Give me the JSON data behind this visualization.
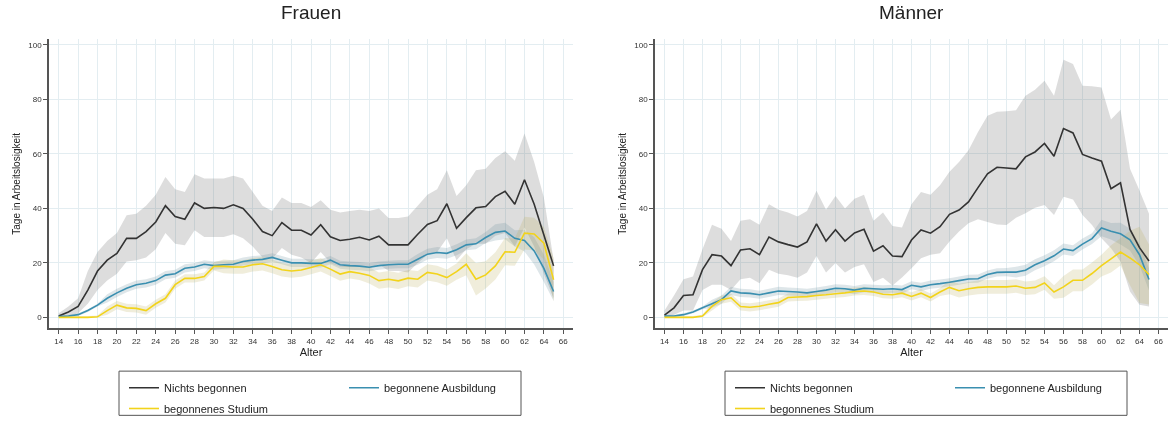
{
  "chart_data": [
    {
      "type": "line",
      "title": "Frauen",
      "xlabel": "Alter",
      "ylabel": "Tage in Arbeitslosigkeit",
      "x": [
        14,
        15,
        16,
        17,
        18,
        19,
        20,
        21,
        22,
        23,
        24,
        25,
        26,
        27,
        28,
        29,
        30,
        31,
        32,
        33,
        34,
        35,
        36,
        37,
        38,
        39,
        40,
        41,
        42,
        43,
        44,
        45,
        46,
        47,
        48,
        49,
        50,
        51,
        52,
        53,
        54,
        55,
        56,
        57,
        58,
        59,
        60,
        61,
        62,
        63,
        64,
        65
      ],
      "xlim": [
        13,
        67
      ],
      "xticks": [
        14,
        16,
        18,
        20,
        22,
        24,
        26,
        28,
        30,
        32,
        34,
        36,
        38,
        40,
        42,
        44,
        46,
        48,
        50,
        52,
        54,
        56,
        58,
        60,
        62,
        64,
        66
      ],
      "ylim": [
        -4,
        102
      ],
      "yticks": [
        0,
        20,
        40,
        60,
        80,
        100
      ],
      "grid": true,
      "legend": "bottom",
      "marker": "none",
      "line_style": "solid",
      "series": [
        {
          "name": "Nichts begonnen",
          "color": "#333333",
          "values": [
            0.5,
            2,
            4,
            10,
            17,
            21,
            23.5,
            29,
            29,
            31.5,
            35,
            41,
            37,
            36,
            42,
            40,
            40.3,
            40,
            41.3,
            40,
            36,
            31.5,
            30,
            34.8,
            32,
            32,
            30.2,
            34,
            29.6,
            28.2,
            28.7,
            29.4,
            28.4,
            29.8,
            26.6,
            26.6,
            26.6,
            30.5,
            34.1,
            35.5,
            41.7,
            32.7,
            36.6,
            40.2,
            40.7,
            44.3,
            46.3,
            41.5,
            50.5,
            41.5,
            30.2,
            18.9
          ],
          "upper": [
            1.5,
            4,
            7,
            17,
            24,
            28,
            31,
            37.5,
            38,
            41,
            45,
            51.5,
            47,
            46,
            52.5,
            51,
            51,
            51,
            52,
            51,
            46,
            41,
            39,
            44,
            42,
            42,
            40.5,
            43,
            39.5,
            38.5,
            39,
            39.5,
            39,
            40,
            36.5,
            36.5,
            37,
            41,
            45,
            47,
            54,
            44.5,
            48.5,
            54,
            54.5,
            58.5,
            61,
            57.5,
            67.5,
            57,
            44,
            21
          ],
          "lower": [
            0,
            0.5,
            1.5,
            5,
            10,
            13.5,
            16,
            20.5,
            21,
            22,
            25,
            31,
            27,
            26.5,
            32,
            29.5,
            29.5,
            29.5,
            30.5,
            29,
            26,
            22,
            21.5,
            25.5,
            23,
            22,
            20,
            24,
            20,
            18.5,
            18.5,
            19,
            18,
            19.5,
            17,
            17,
            16.5,
            20,
            23,
            24,
            29,
            21,
            25,
            27,
            27,
            30,
            31,
            26,
            33,
            26,
            16,
            7
          ]
        },
        {
          "name": "begonnene Ausbildung",
          "color": "#3a8fb0",
          "values": [
            0.3,
            0.5,
            1,
            2.5,
            4.5,
            7,
            9,
            10.7,
            12,
            12.5,
            13.5,
            15.5,
            16,
            18,
            18.5,
            19.5,
            19,
            19.3,
            19.5,
            20.5,
            21,
            21.3,
            22,
            21,
            20,
            20,
            19.8,
            19.8,
            21,
            19.3,
            19,
            18.8,
            18.4,
            19,
            19.3,
            19.5,
            19.5,
            21.3,
            23.2,
            23.8,
            23.5,
            24.8,
            26.6,
            27,
            29.3,
            31.2,
            31.7,
            29,
            28.2,
            24.4,
            18,
            9.5
          ],
          "upper": [
            0.8,
            1,
            1.5,
            3,
            5,
            8.5,
            10.5,
            12.2,
            13.5,
            14,
            15,
            17,
            17.5,
            19.5,
            20,
            21,
            20.5,
            20.8,
            21,
            22,
            22.5,
            22.8,
            23.5,
            22.5,
            21.5,
            21.5,
            21.3,
            21.3,
            22.5,
            20.8,
            20.5,
            20.3,
            19.9,
            20.5,
            20.8,
            21,
            21,
            23.3,
            25.2,
            25.8,
            25.5,
            26.8,
            28.6,
            29,
            31.3,
            34.2,
            34.7,
            32,
            32.2,
            29.4,
            23,
            13
          ],
          "lower": [
            0,
            0,
            0.5,
            2,
            4,
            5.5,
            7.5,
            9.2,
            10.5,
            11,
            12,
            14,
            14.5,
            16.5,
            17,
            18,
            17.5,
            17.8,
            18,
            19,
            19.5,
            19.8,
            20.5,
            19.5,
            18.5,
            18.5,
            18.3,
            18.3,
            19.5,
            17.8,
            17.5,
            17.3,
            16.9,
            17.5,
            17.8,
            18,
            18,
            19.3,
            21.2,
            21.8,
            21.5,
            22.8,
            24.6,
            25,
            27.3,
            28.2,
            28.7,
            26,
            24.2,
            19.4,
            13,
            6
          ]
        },
        {
          "name": "begonnenes Studium",
          "color": "#f2d31b",
          "values": [
            0,
            0,
            0,
            0,
            0.2,
            2.5,
            4.5,
            3.5,
            3.3,
            2.5,
            5,
            7,
            12,
            14.3,
            14.3,
            15,
            18.7,
            18.7,
            18.5,
            18.5,
            19.3,
            19.7,
            18.7,
            17.5,
            17,
            17.4,
            18.3,
            19.3,
            17.7,
            15.9,
            16.8,
            16.2,
            15.4,
            13.5,
            14,
            13.4,
            14.4,
            14,
            16.5,
            15.9,
            14.6,
            16.8,
            19.5,
            14,
            15.6,
            18.9,
            24.1,
            23.9,
            30.9,
            30.6,
            27.2,
            13.8
          ],
          "upper": [
            0.5,
            0.5,
            0.5,
            0.5,
            0.7,
            4,
            6,
            5,
            4.8,
            4,
            6.5,
            8.5,
            13.5,
            15.8,
            15.8,
            16.5,
            20.2,
            21.2,
            21,
            21,
            21.8,
            22.2,
            21.2,
            20,
            19.5,
            19.9,
            20.8,
            21.8,
            20.2,
            18.4,
            19.3,
            18.7,
            18.4,
            16.5,
            17,
            16.4,
            17.4,
            17,
            19.5,
            18.9,
            17.6,
            19.8,
            23.5,
            20,
            20.6,
            23.9,
            29.1,
            28.9,
            36.9,
            36.6,
            33.2,
            21.8
          ],
          "lower": [
            0,
            0,
            0,
            0,
            0,
            1,
            3,
            2,
            1.8,
            1,
            3.5,
            5.5,
            10.5,
            12.8,
            12.8,
            13.5,
            17.2,
            16.2,
            16,
            16,
            16.8,
            17.2,
            16.2,
            15,
            14.5,
            14.9,
            15.8,
            16.8,
            15.2,
            13.4,
            14.3,
            13.7,
            12.4,
            10.5,
            11,
            10.4,
            11.4,
            11,
            13.5,
            12.9,
            11.6,
            13.8,
            15.5,
            8,
            10.6,
            13.9,
            19.1,
            18.9,
            24.9,
            24.6,
            21.2,
            5.8
          ]
        }
      ]
    },
    {
      "type": "line",
      "title": "Männer",
      "xlabel": "Alter",
      "ylabel": "Tage in Arbeitslosigkeit",
      "x": [
        14,
        15,
        16,
        17,
        18,
        19,
        20,
        21,
        22,
        23,
        24,
        25,
        26,
        27,
        28,
        29,
        30,
        31,
        32,
        33,
        34,
        35,
        36,
        37,
        38,
        39,
        40,
        41,
        42,
        43,
        44,
        45,
        46,
        47,
        48,
        49,
        50,
        51,
        52,
        53,
        54,
        55,
        56,
        57,
        58,
        59,
        60,
        61,
        62,
        63,
        64,
        65
      ],
      "xlim": [
        13,
        67
      ],
      "xticks": [
        14,
        16,
        18,
        20,
        22,
        24,
        26,
        28,
        30,
        32,
        34,
        36,
        38,
        40,
        42,
        44,
        46,
        48,
        50,
        52,
        54,
        56,
        58,
        60,
        62,
        64,
        66
      ],
      "ylim": [
        -4,
        102
      ],
      "yticks": [
        0,
        20,
        40,
        60,
        80,
        100
      ],
      "grid": true,
      "legend": "bottom",
      "marker": "none",
      "line_style": "solid",
      "series": [
        {
          "name": "Nichts begonnen",
          "color": "#333333",
          "values": [
            0.8,
            3.5,
            8,
            8.3,
            17.5,
            23,
            22.5,
            19,
            24.7,
            25.2,
            23,
            29.5,
            27.7,
            26.7,
            25.8,
            27.7,
            34.3,
            28,
            32.2,
            28,
            31,
            32.3,
            24.3,
            26.3,
            22.5,
            22.3,
            28.4,
            32.1,
            30.9,
            33.3,
            37.8,
            39.4,
            42.4,
            47.6,
            52.7,
            55.1,
            54.8,
            54.5,
            58.9,
            60.7,
            63.8,
            59.1,
            69.3,
            67.7,
            59.8,
            58.5,
            57.3,
            47.2,
            49.4,
            32.3,
            25.6,
            20.7
          ],
          "upper": [
            2.5,
            8,
            14,
            15,
            25,
            34,
            32.5,
            28,
            35.5,
            36,
            34,
            41.5,
            39.5,
            38.5,
            37,
            39,
            46.5,
            39.5,
            44.5,
            40,
            43.5,
            45,
            35.5,
            38.5,
            33.5,
            33,
            41.5,
            46,
            45,
            48.5,
            53.4,
            57,
            61.3,
            68,
            74,
            75.5,
            75.6,
            76,
            81.3,
            83.5,
            86.8,
            81.3,
            94.5,
            93,
            85,
            84.8,
            84.4,
            72.6,
            76.2,
            54.5,
            46.6,
            38
          ],
          "lower": [
            0,
            1,
            2.5,
            2.5,
            10,
            12,
            12,
            10,
            14,
            14.5,
            12.5,
            17.5,
            16,
            15.5,
            14.5,
            16.5,
            22.5,
            16.5,
            20,
            16.5,
            18.5,
            19.5,
            13,
            14.5,
            11.7,
            14.6,
            18,
            21.7,
            23,
            23.5,
            27.8,
            31.5,
            34.5,
            36,
            35,
            34.1,
            33.9,
            36.6,
            38.2,
            40.2,
            41.2,
            37.6,
            44.3,
            43.3,
            37.6,
            33.9,
            29,
            25.4,
            20.5,
            9.5,
            4.6,
            4
          ]
        },
        {
          "name": "begonnene Ausbildung",
          "color": "#3a8fb0",
          "values": [
            0.5,
            0.5,
            1,
            2,
            3.5,
            5,
            6.5,
            9.7,
            9,
            8.8,
            8.3,
            9,
            9.7,
            9.5,
            9.3,
            9,
            9.5,
            10,
            10.7,
            10.5,
            10,
            10.7,
            10.5,
            10.3,
            10.5,
            10.2,
            11.8,
            11.2,
            12,
            12.4,
            12.9,
            13.5,
            14.1,
            14.2,
            15.7,
            16.5,
            16.6,
            16.6,
            17.3,
            19.3,
            20.8,
            22.6,
            25.1,
            24.5,
            26.9,
            28.9,
            32.8,
            31.6,
            30.7,
            28.5,
            23,
            13.9
          ],
          "upper": [
            1,
            1,
            1.5,
            2.5,
            4,
            6.5,
            8,
            11.2,
            10.5,
            10.3,
            9.8,
            10.5,
            11.2,
            11,
            10.8,
            10.5,
            11,
            11.5,
            12.2,
            12,
            11.5,
            12.2,
            12,
            11.8,
            12,
            11.7,
            13.3,
            12.7,
            13.5,
            13.9,
            14.4,
            15,
            15.6,
            15.7,
            17.2,
            18,
            18.1,
            18.6,
            19.3,
            21.3,
            22.8,
            24.6,
            27.1,
            26.5,
            28.9,
            30.9,
            35.8,
            34.6,
            34.7,
            32.5,
            27,
            17.9
          ],
          "lower": [
            0,
            0,
            0.5,
            1.5,
            3,
            3.5,
            5,
            8.2,
            7.5,
            7.3,
            6.8,
            7.5,
            8.2,
            8,
            7.8,
            7.5,
            8,
            8.5,
            9.2,
            9,
            8.5,
            9.2,
            9,
            8.8,
            9,
            8.7,
            10.3,
            9.7,
            10.5,
            10.9,
            11.4,
            12,
            12.6,
            12.7,
            14.2,
            15,
            15.1,
            14.6,
            15.3,
            17.3,
            18.8,
            20.6,
            23.1,
            22.5,
            24.9,
            26.9,
            29.8,
            28.6,
            26.7,
            24.5,
            19,
            9.9
          ]
        },
        {
          "name": "begonnenes Studium",
          "color": "#f2d31b",
          "values": [
            0,
            0,
            0,
            0,
            0.5,
            4,
            6.5,
            7.2,
            4,
            3.7,
            4.1,
            4.8,
            5.4,
            7.3,
            7.5,
            7.6,
            8,
            8.3,
            8.7,
            9,
            9.5,
            9.7,
            9.3,
            8.5,
            8.3,
            8.9,
            7.7,
            8.9,
            7.3,
            9.3,
            11,
            9.8,
            10.5,
            11,
            11.2,
            11.2,
            11.2,
            11.5,
            10.7,
            11,
            12.6,
            9.3,
            11.2,
            13.6,
            13.6,
            16.1,
            19,
            21.5,
            24,
            21.8,
            19.3,
            15.7
          ],
          "upper": [
            0.5,
            0.5,
            0.5,
            0.5,
            1,
            5.5,
            8,
            8.7,
            5.5,
            5.2,
            5.6,
            6.3,
            6.9,
            8.8,
            9,
            9.1,
            9.5,
            9.8,
            10.2,
            10.5,
            11,
            11.2,
            10.8,
            10,
            9.8,
            10.4,
            9.2,
            10.4,
            8.8,
            10.8,
            13.5,
            12.3,
            13,
            13.5,
            13.7,
            13.7,
            13.7,
            14,
            13.2,
            13.5,
            15.1,
            11.8,
            15.2,
            17.6,
            17.6,
            20.1,
            23,
            26.5,
            29,
            31.8,
            33.3,
            26.7
          ],
          "lower": [
            0,
            0,
            0,
            0,
            0,
            2.5,
            5,
            5.7,
            2.5,
            2.2,
            2.6,
            3.3,
            3.9,
            5.8,
            6,
            6.1,
            6.5,
            6.8,
            7.2,
            7.5,
            8,
            8.2,
            7.8,
            7,
            6.8,
            7.4,
            6.2,
            7.4,
            5.8,
            7.8,
            8.5,
            7.3,
            8,
            8.5,
            8.7,
            8.7,
            8.7,
            9,
            8.2,
            8.5,
            10.1,
            6.8,
            7.2,
            9.6,
            9.6,
            12.1,
            15,
            16.5,
            19,
            11.8,
            5.3,
            4.7
          ]
        }
      ]
    }
  ]
}
